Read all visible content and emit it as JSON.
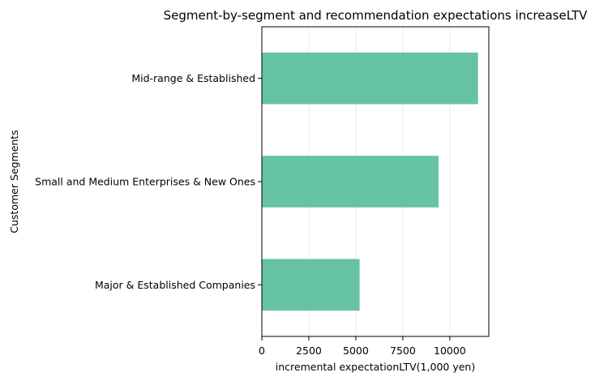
{
  "chart_data": {
    "type": "bar",
    "orientation": "horizontal",
    "title": "Segment-by-segment and recommendation expectations increaseLTV",
    "xlabel": "incremental expectationLTV(1,000 yen)",
    "ylabel": "Customer Segments",
    "categories": [
      "Mid-range & Established",
      "Small and Medium Enterprises & New Ones",
      "Major & Established Companies"
    ],
    "values": [
      11500,
      9400,
      5200
    ],
    "xlim": [
      0,
      12075
    ],
    "xticks": [
      0,
      2500,
      5000,
      7500,
      10000
    ],
    "xtick_labels": [
      "0",
      "2500",
      "5000",
      "7500",
      "10000"
    ],
    "grid": "vertical",
    "bar_color": "#66c2a5",
    "legend": "none"
  }
}
